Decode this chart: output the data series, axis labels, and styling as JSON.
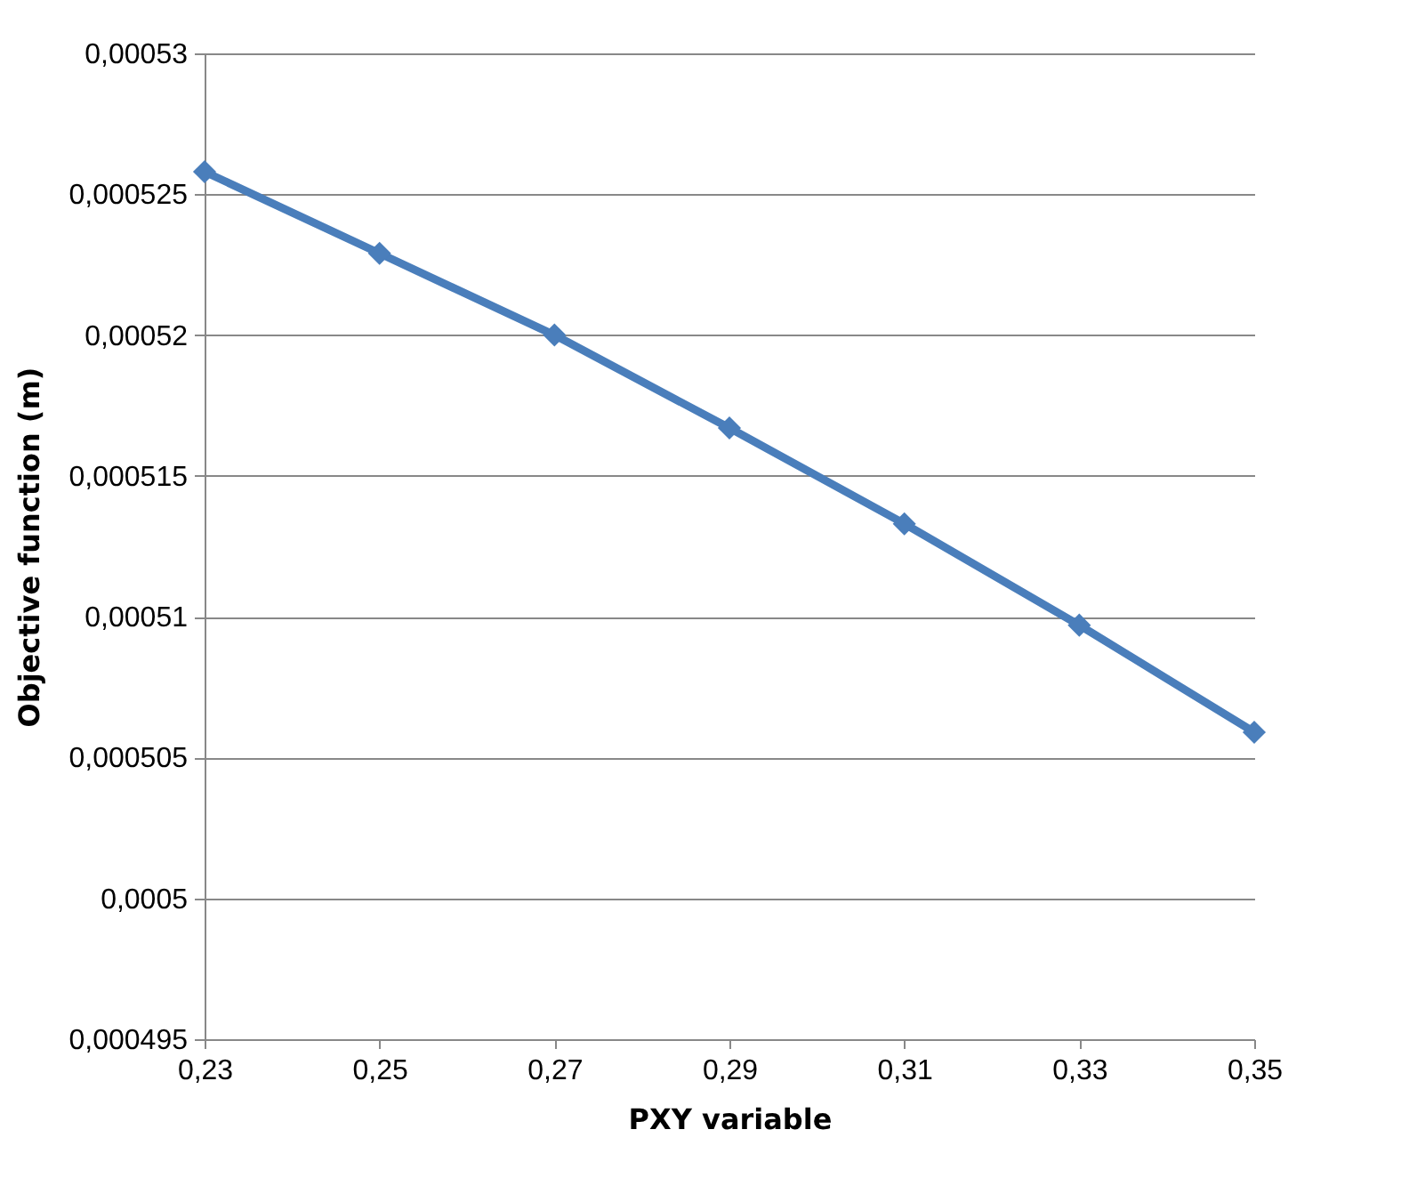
{
  "chart_data": {
    "type": "line",
    "xlabel": "PXY variable",
    "ylabel": "Objective function (m)",
    "x": [
      0.23,
      0.25,
      0.27,
      0.29,
      0.31,
      0.33,
      0.35
    ],
    "series": [
      {
        "color": "#4a7ebb",
        "values": [
          0.0005258,
          0.0005229,
          0.00052,
          0.0005167,
          0.0005133,
          0.0005097,
          0.0005059
        ]
      }
    ],
    "xlim": [
      0.23,
      0.35
    ],
    "xticks": [
      {
        "value": 0.23,
        "label": "0,23"
      },
      {
        "value": 0.25,
        "label": "0,25"
      },
      {
        "value": 0.27,
        "label": "0,27"
      },
      {
        "value": 0.29,
        "label": "0,29"
      },
      {
        "value": 0.31,
        "label": "0,31"
      },
      {
        "value": 0.33,
        "label": "0,33"
      },
      {
        "value": 0.35,
        "label": "0,35"
      }
    ],
    "ylim": [
      0.000495,
      0.00053
    ],
    "yticks": [
      {
        "value": 0.000495,
        "label": "0,000495"
      },
      {
        "value": 0.0005,
        "label": "0,0005"
      },
      {
        "value": 0.000505,
        "label": "0,000505"
      },
      {
        "value": 0.00051,
        "label": "0,00051"
      },
      {
        "value": 0.000515,
        "label": "0,000515"
      },
      {
        "value": 0.00052,
        "label": "0,00052"
      },
      {
        "value": 0.000525,
        "label": "0,000525"
      },
      {
        "value": 0.00053,
        "label": "0,00053"
      }
    ],
    "grid": "y",
    "marker": "diamond",
    "line_style": "solid"
  }
}
